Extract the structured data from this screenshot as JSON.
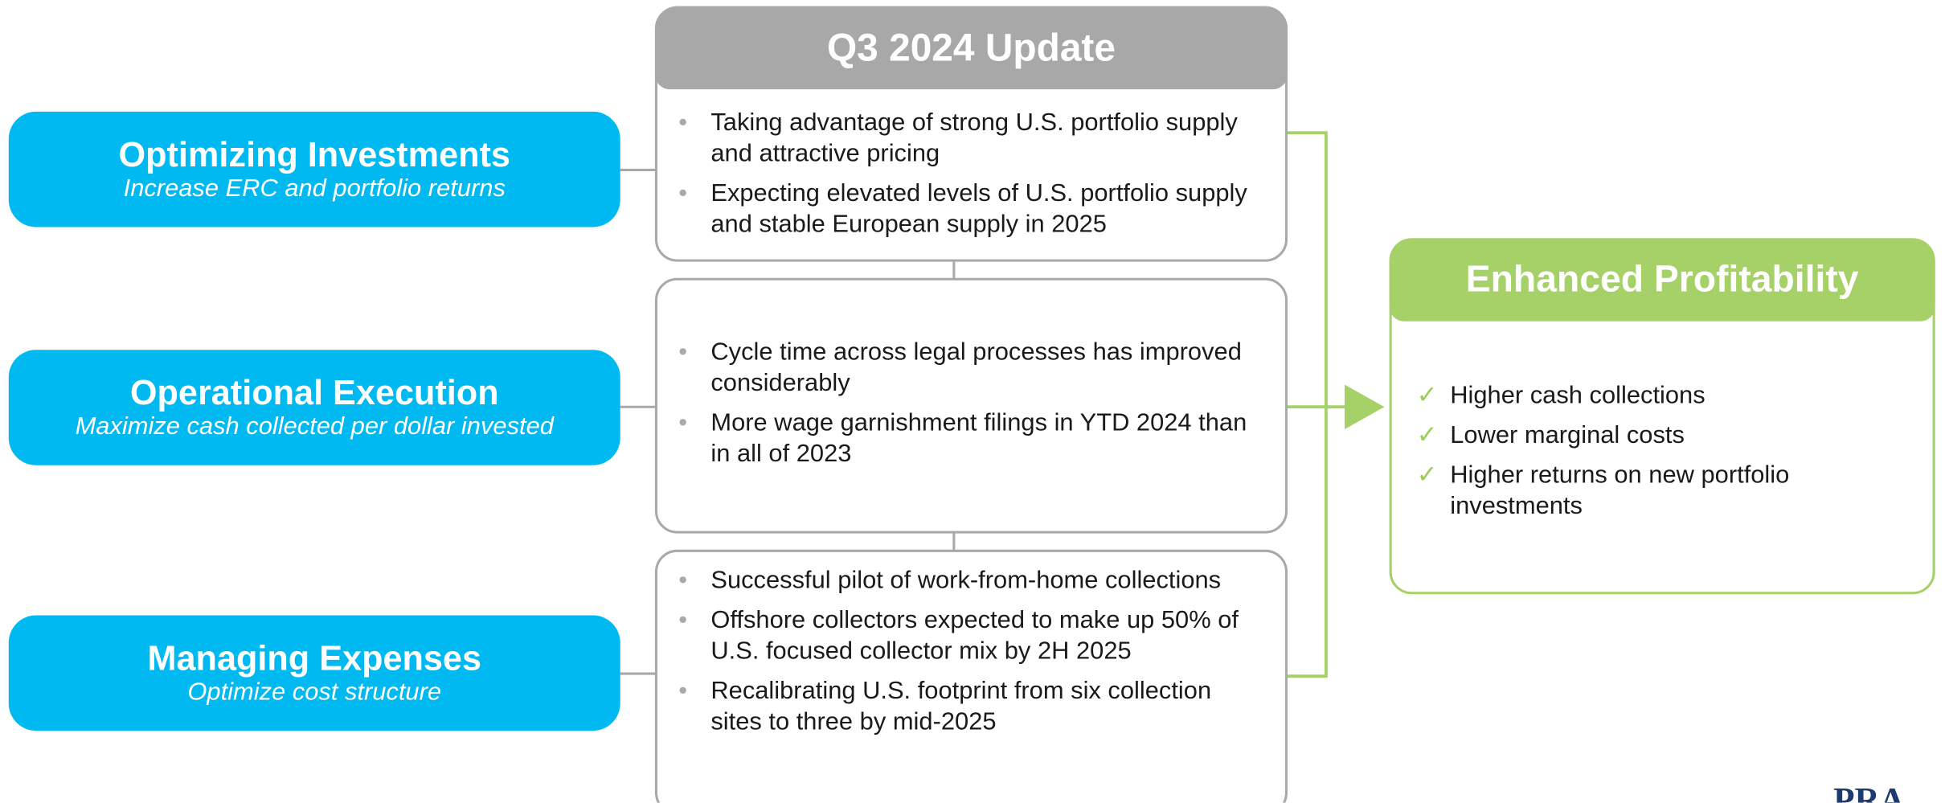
{
  "header": {
    "title": "Q3 2024 Update"
  },
  "pillars": [
    {
      "title": "Optimizing Investments",
      "subtitle": "Increase ERC and portfolio returns"
    },
    {
      "title": "Operational Execution",
      "subtitle": "Maximize cash collected per dollar invested"
    },
    {
      "title": "Managing Expenses",
      "subtitle": "Optimize cost structure"
    }
  ],
  "updates": [
    [
      "Taking advantage of strong U.S. portfolio supply and attractive pricing",
      "Expecting elevated levels of U.S. portfolio supply and stable European supply in 2025"
    ],
    [
      "Cycle time across legal processes has improved considerably",
      "More wage garnishment filings in YTD 2024 than in all of 2023"
    ],
    [
      "Successful pilot of work-from-home collections",
      "Offshore collectors expected to make up 50% of U.S. focused collector mix by 2H 2025",
      "Recalibrating U.S. footprint from six collection sites to three by mid-2025"
    ]
  ],
  "outcome": {
    "title": "Enhanced Profitability",
    "items": [
      "Higher cash collections",
      "Lower marginal costs",
      "Higher returns on new portfolio investments"
    ]
  },
  "logo": "PRA"
}
